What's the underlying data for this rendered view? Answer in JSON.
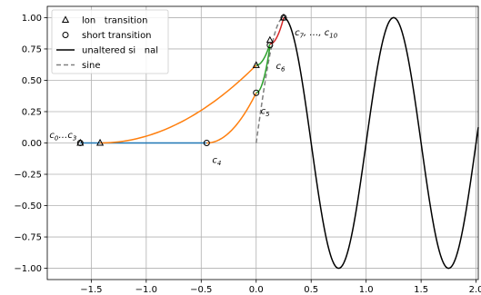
{
  "chart_data": {
    "type": "line",
    "xlim": [
      -1.9,
      2.02
    ],
    "ylim": [
      -1.09,
      1.09
    ],
    "x_ticks": [
      -1.5,
      -1.0,
      -0.5,
      0.0,
      0.5,
      1.0,
      1.5,
      2.0
    ],
    "x_tick_labels": [
      "−1.5",
      "−1.0",
      "−0.5",
      "0.0",
      "0.5",
      "1.0",
      "1.5",
      "2.0"
    ],
    "y_ticks": [
      -1.0,
      -0.75,
      -0.5,
      -0.25,
      0.0,
      0.25,
      0.5,
      0.75,
      1.0
    ],
    "y_tick_labels": [
      "−1.00",
      "−0.75",
      "−0.50",
      "−0.25",
      "0.00",
      "0.25",
      "0.50",
      "0.75",
      "1.00"
    ],
    "grid": true,
    "legend_position": "top-left",
    "legend": [
      {
        "label": "lon   transition",
        "marker": "triangle",
        "color": "#000000"
      },
      {
        "label": "short transition",
        "marker": "circle",
        "color": "#000000"
      },
      {
        "label": "unaltered si   nal",
        "line": "solid",
        "color": "#000000"
      },
      {
        "label": "sine",
        "line": "dashed",
        "color": "#808080"
      }
    ],
    "colors": {
      "blue": "#1f77b4",
      "orange": "#ff7f0e",
      "green": "#2ca02c",
      "red": "#d62728",
      "black": "#000000",
      "gray": "#808080"
    },
    "series": [
      {
        "style": "dashed",
        "color_key": "gray",
        "function": "sine",
        "x_range": [
          0.0,
          0.25
        ]
      },
      {
        "style": "solid",
        "color_key": "black",
        "function": "sine",
        "x_range": [
          0.25,
          2.02
        ]
      },
      {
        "style": "solid",
        "color_key": "blue",
        "x": [
          -1.6,
          -0.45
        ],
        "y": [
          0.0,
          0.0
        ]
      },
      {
        "style": "curve",
        "color_key": "orange",
        "from": [
          -1.42,
          0.0
        ],
        "to": [
          0.0,
          0.62
        ]
      },
      {
        "style": "curve",
        "color_key": "orange",
        "from": [
          -0.45,
          0.0
        ],
        "to": [
          0.0,
          0.4
        ]
      },
      {
        "style": "curve",
        "color_key": "green",
        "from": [
          0.0,
          0.62
        ],
        "to": [
          0.125,
          0.79
        ]
      },
      {
        "style": "curve",
        "color_key": "green",
        "from": [
          0.0,
          0.4
        ],
        "to": [
          0.125,
          0.77
        ]
      },
      {
        "style": "curve",
        "color_key": "red",
        "from": [
          0.125,
          0.79
        ],
        "to": [
          0.25,
          1.0
        ]
      }
    ],
    "markers": {
      "triangle": [
        [
          -1.6,
          0.0
        ],
        [
          -1.42,
          0.0
        ],
        [
          0.0,
          0.62
        ],
        [
          0.125,
          0.82
        ],
        [
          0.25,
          1.0
        ]
      ],
      "circle": [
        [
          -1.6,
          0.0
        ],
        [
          -0.45,
          0.0
        ],
        [
          0.0,
          0.4
        ],
        [
          0.125,
          0.78
        ],
        [
          0.25,
          1.0
        ]
      ]
    },
    "annotations": [
      {
        "base": "c",
        "sub": "0",
        "mid": "…",
        "base2": "c",
        "sub2": "3",
        "x": -1.88,
        "y": 0.04
      },
      {
        "base": "c",
        "sub": "4",
        "x": -0.4,
        "y": -0.16
      },
      {
        "base": "c",
        "sub": "5",
        "x": 0.04,
        "y": 0.23
      },
      {
        "base": "c",
        "sub": "6",
        "x": 0.18,
        "y": 0.59
      },
      {
        "base": "c",
        "sub": "7",
        "mid": ", …, ",
        "base2": "c",
        "sub2": "10",
        "x": 0.35,
        "y": 0.86
      }
    ]
  }
}
